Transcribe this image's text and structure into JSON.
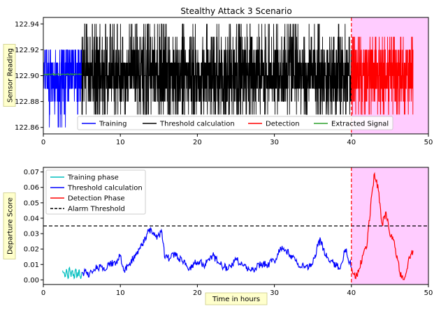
{
  "title": "Stealthy Attack 3 Scenario",
  "chart_data": [
    {
      "type": "line",
      "title": "Stealthy Attack 3 Scenario",
      "xlabel": "",
      "ylabel": "Sensor Reading",
      "xlim": [
        0,
        50
      ],
      "ylim": [
        122.855,
        122.945
      ],
      "xticks": [
        0,
        10,
        20,
        30,
        40,
        50
      ],
      "yticks": [
        122.86,
        122.88,
        122.9,
        122.92,
        122.94
      ],
      "ytick_labels": [
        "122.86",
        "122.88",
        "122.90",
        "122.92",
        "122.94"
      ],
      "legend": {
        "placement": "lower-center",
        "columns": 4
      },
      "shaded_region": {
        "x": [
          40,
          50
        ],
        "color": "#ffccff"
      },
      "vline": {
        "x": 40,
        "style": "dashed",
        "color": "#ff0000"
      },
      "series": [
        {
          "name": "Training",
          "color": "#0000ff",
          "x_range": [
            0,
            5
          ],
          "level_values": [
            122.87,
            122.88,
            122.89,
            122.9,
            122.91,
            122.92
          ],
          "center": 122.9,
          "spikes_low": [
            122.86
          ]
        },
        {
          "name": "Threshold calculation",
          "color": "#000000",
          "x_range": [
            5,
            40
          ],
          "level_values": [
            122.87,
            122.88,
            122.89,
            122.9,
            122.91,
            122.92,
            122.93,
            122.94
          ],
          "center": 122.9
        },
        {
          "name": "Detection",
          "color": "#ff0000",
          "x_range": [
            40,
            48
          ],
          "level_values": [
            122.87,
            122.88,
            122.89,
            122.9,
            122.91,
            122.92,
            122.93
          ],
          "center": 122.9
        },
        {
          "name": "Extracted Signal",
          "color": "#2ca02c",
          "x_range": [
            0,
            5
          ],
          "approx_value": 122.901
        }
      ]
    },
    {
      "type": "line",
      "title": "",
      "xlabel": "Time in hours",
      "ylabel": "Departure Score",
      "xlim": [
        0,
        50
      ],
      "ylim": [
        -0.003,
        0.073
      ],
      "xticks": [
        0,
        10,
        20,
        30,
        40,
        50
      ],
      "yticks": [
        0.0,
        0.01,
        0.02,
        0.03,
        0.04,
        0.05,
        0.06,
        0.07
      ],
      "ytick_labels": [
        "0.00",
        "0.01",
        "0.02",
        "0.03",
        "0.04",
        "0.05",
        "0.06",
        "0.07"
      ],
      "legend": {
        "placement": "top-left"
      },
      "shaded_region": {
        "x": [
          40,
          50
        ],
        "color": "#ffccff"
      },
      "vline": {
        "x": 40,
        "style": "dashed",
        "color": "#ff0000"
      },
      "series": [
        {
          "name": "Training phase",
          "color": "#00bfbf",
          "points": [
            [
              2.5,
              0.006
            ],
            [
              2.8,
              0.002
            ],
            [
              3.0,
              0.007
            ],
            [
              3.2,
              0.001
            ],
            [
              3.4,
              0.008
            ],
            [
              3.6,
              0.002
            ],
            [
              3.8,
              0.006
            ],
            [
              4.0,
              0.001
            ],
            [
              4.2,
              0.007
            ],
            [
              4.4,
              0.002
            ],
            [
              4.6,
              0.006
            ],
            [
              4.8,
              0.002
            ],
            [
              5.0,
              0.005
            ]
          ]
        },
        {
          "name": "Threshold calculation",
          "color": "#0000ff",
          "points": [
            [
              5.0,
              0.005
            ],
            [
              6.0,
              0.004
            ],
            [
              7.0,
              0.009
            ],
            [
              8.0,
              0.006
            ],
            [
              8.8,
              0.011
            ],
            [
              9.5,
              0.012
            ],
            [
              10.0,
              0.016
            ],
            [
              10.5,
              0.006
            ],
            [
              11.0,
              0.009
            ],
            [
              12.0,
              0.016
            ],
            [
              12.8,
              0.022
            ],
            [
              13.5,
              0.03
            ],
            [
              14.0,
              0.033
            ],
            [
              14.6,
              0.028
            ],
            [
              15.4,
              0.031
            ],
            [
              15.8,
              0.014
            ],
            [
              16.5,
              0.014
            ],
            [
              17.0,
              0.017
            ],
            [
              18.0,
              0.012
            ],
            [
              19.0,
              0.008
            ],
            [
              20.0,
              0.012
            ],
            [
              21.0,
              0.01
            ],
            [
              22.0,
              0.016
            ],
            [
              23.0,
              0.01
            ],
            [
              24.0,
              0.007
            ],
            [
              25.0,
              0.013
            ],
            [
              26.0,
              0.009
            ],
            [
              27.0,
              0.006
            ],
            [
              28.0,
              0.01
            ],
            [
              29.0,
              0.01
            ],
            [
              30.0,
              0.012
            ],
            [
              31.0,
              0.022
            ],
            [
              32.0,
              0.016
            ],
            [
              33.0,
              0.01
            ],
            [
              34.0,
              0.008
            ],
            [
              35.0,
              0.011
            ],
            [
              35.5,
              0.02
            ],
            [
              36.0,
              0.026
            ],
            [
              36.6,
              0.016
            ],
            [
              37.5,
              0.012
            ],
            [
              38.5,
              0.007
            ],
            [
              39.2,
              0.02
            ],
            [
              40.0,
              0.008
            ]
          ]
        },
        {
          "name": "Detection Phase",
          "color": "#ff0000",
          "points": [
            [
              40.0,
              0.008
            ],
            [
              40.5,
              0.001
            ],
            [
              41.0,
              0.007
            ],
            [
              41.5,
              0.016
            ],
            [
              42.0,
              0.021
            ],
            [
              42.5,
              0.048
            ],
            [
              43.0,
              0.069
            ],
            [
              43.5,
              0.058
            ],
            [
              44.0,
              0.036
            ],
            [
              44.5,
              0.044
            ],
            [
              45.0,
              0.029
            ],
            [
              45.5,
              0.026
            ],
            [
              46.0,
              0.013
            ],
            [
              46.5,
              0.001
            ],
            [
              47.0,
              0.002
            ],
            [
              47.5,
              0.015
            ],
            [
              48.0,
              0.019
            ]
          ]
        },
        {
          "name": "Alarm Threshold",
          "color": "#000000",
          "style": "dashed",
          "value": 0.035
        }
      ]
    }
  ]
}
